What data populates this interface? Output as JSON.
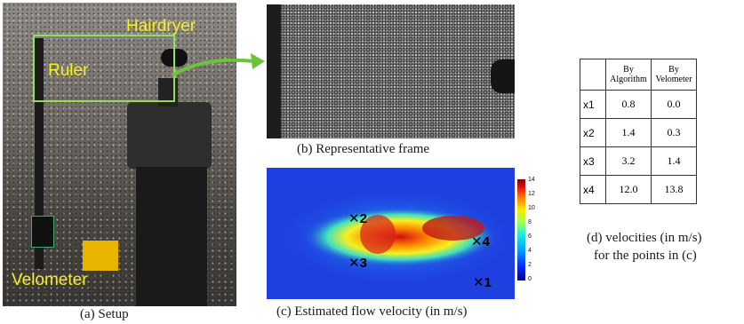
{
  "panel_a": {
    "labels": {
      "hairdryer": "Hairdryer",
      "ruler": "Ruler",
      "velometer": "Velometer"
    },
    "caption": "(a) Setup",
    "annotation_color": "#f6f020",
    "box_color": "#8fe05a"
  },
  "panel_b": {
    "caption": "(b) Representative frame"
  },
  "panel_c": {
    "caption": "(c) Estimated flow velocity (in m/s)",
    "points": [
      "1",
      "2",
      "3",
      "4"
    ],
    "colorbar_ticks": [
      "14",
      "12",
      "10",
      "8",
      "6",
      "4",
      "2",
      "0"
    ]
  },
  "panel_d": {
    "headers": [
      "By Algorithm",
      "By Velometer"
    ],
    "header_lines": [
      [
        "By",
        "Algorithm"
      ],
      [
        "By",
        "Velometer"
      ]
    ],
    "rows": [
      {
        "label": "x1",
        "algorithm": "0.8",
        "velometer": "0.0"
      },
      {
        "label": "x2",
        "algorithm": "1.4",
        "velometer": "0.3"
      },
      {
        "label": "x3",
        "algorithm": "3.2",
        "velometer": "1.4"
      },
      {
        "label": "x4",
        "algorithm": "12.0",
        "velometer": "13.8"
      }
    ],
    "caption_line1": "(d) velocities (in m/s)",
    "caption_line2": "for the points in (c)"
  },
  "arrow_color": "#6cc43a"
}
